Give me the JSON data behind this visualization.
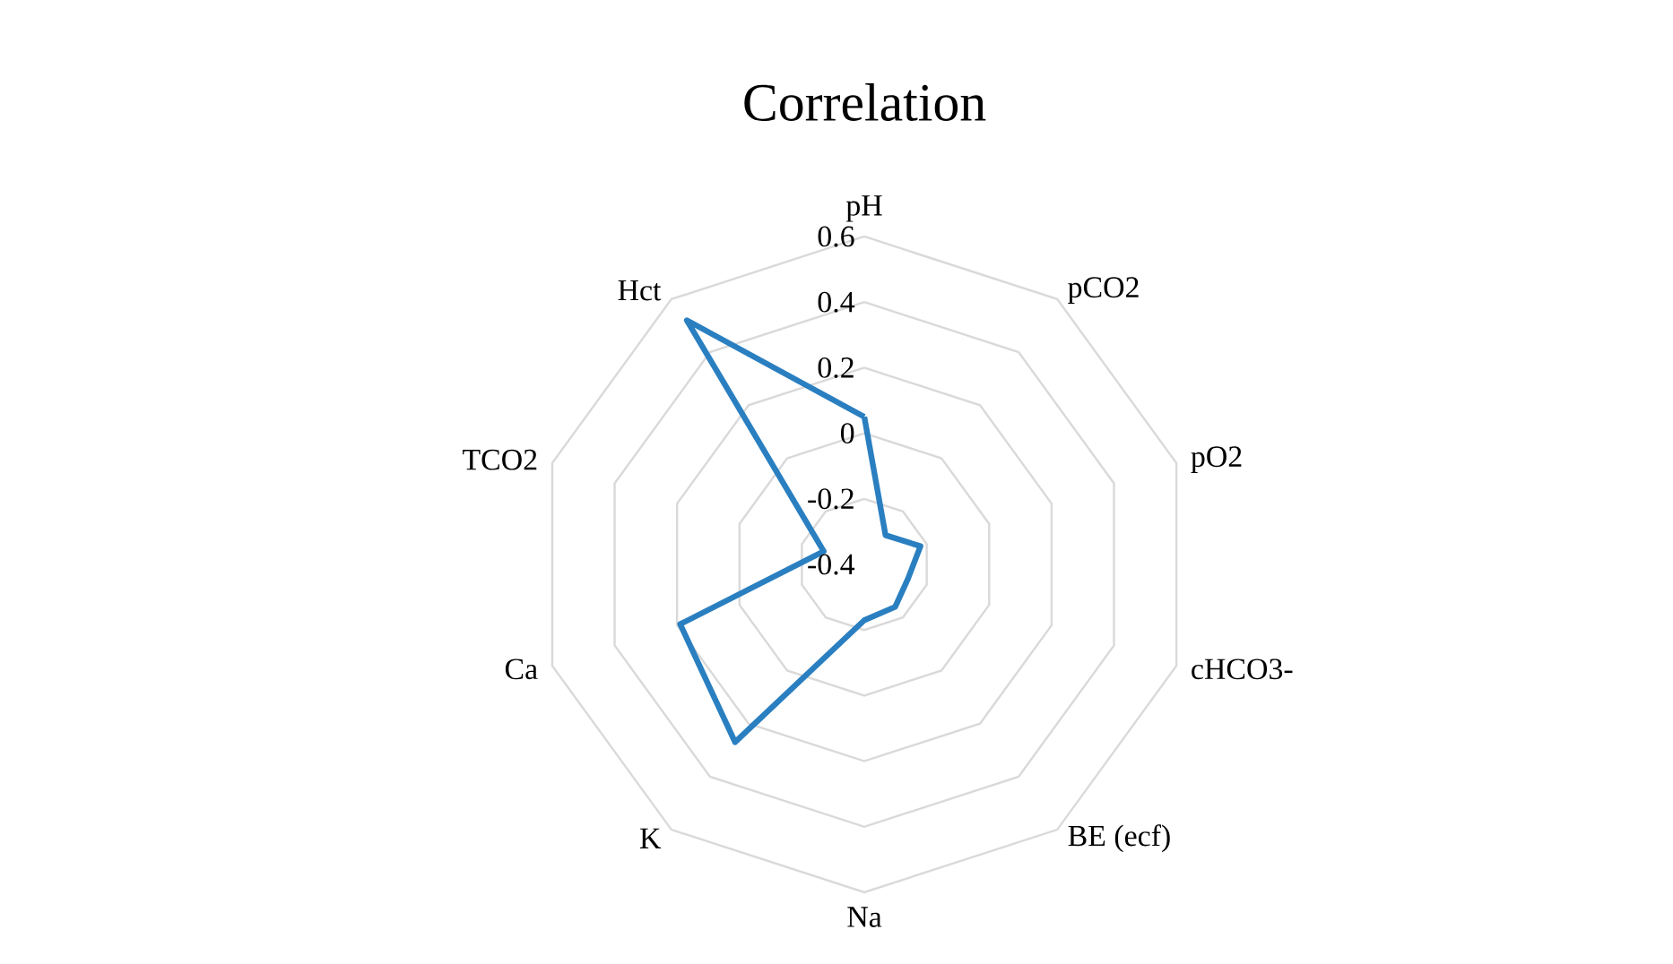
{
  "chart_data": {
    "type": "radar",
    "title": "Correlation",
    "categories": [
      "pH",
      "pCO2",
      "pO2",
      "cHCO3-",
      "BE (ecf)",
      "Na",
      "K",
      "Ca",
      "TCO2",
      "Hct"
    ],
    "series": [
      {
        "color": "#2a7fc0",
        "values": [
          0.05,
          -0.29,
          -0.22,
          -0.26,
          -0.24,
          -0.23,
          0.27,
          0.19,
          -0.27,
          0.52
        ]
      }
    ],
    "ylim": [
      -0.4,
      0.6
    ],
    "yticks": [
      -0.4,
      -0.2,
      0,
      0.2,
      0.4,
      0.6
    ],
    "grid": true
  }
}
